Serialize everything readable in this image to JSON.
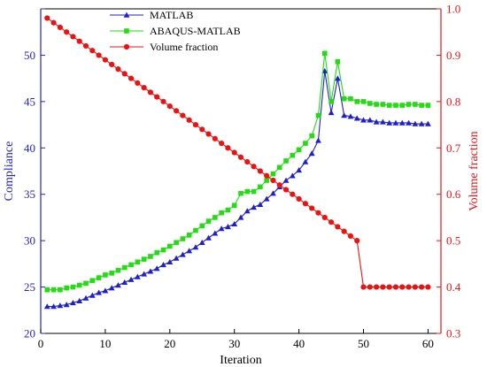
{
  "chart_data": {
    "type": "line",
    "xlabel": "Iteration",
    "ylabel": "Compliance",
    "y2label": "Volume fraction",
    "xlim": [
      0,
      62
    ],
    "xticks": [
      0,
      10,
      20,
      30,
      40,
      50,
      60
    ],
    "ylim": [
      20,
      55
    ],
    "yticks": [
      20,
      25,
      30,
      35,
      40,
      45,
      50,
      55
    ],
    "y2lim": [
      0.3,
      1.0
    ],
    "y2ticks": [
      0.3,
      0.4,
      0.5,
      0.6,
      0.7,
      0.8,
      0.9,
      1.0
    ],
    "legend_position": "top-left",
    "grid": false,
    "colors": {
      "left_axis": "#2222cc",
      "right_axis": "#ee1111",
      "frame": "#000000"
    },
    "series": [
      {
        "name": "MATLAB",
        "axis": "left",
        "color": "#1f1fcf",
        "marker": "triangle",
        "x": [
          1,
          2,
          3,
          4,
          5,
          6,
          7,
          8,
          9,
          10,
          11,
          12,
          13,
          14,
          15,
          16,
          17,
          18,
          19,
          20,
          21,
          22,
          23,
          24,
          25,
          26,
          27,
          28,
          29,
          30,
          31,
          32,
          33,
          34,
          35,
          36,
          37,
          38,
          39,
          40,
          41,
          42,
          43,
          44,
          45,
          46,
          47,
          48,
          49,
          50,
          51,
          52,
          53,
          54,
          55,
          56,
          57,
          58,
          59,
          60
        ],
        "y": [
          22.9,
          22.9,
          23.0,
          23.1,
          23.3,
          23.5,
          23.8,
          24.1,
          24.4,
          24.6,
          24.9,
          25.2,
          25.5,
          25.8,
          26.1,
          26.4,
          26.7,
          27.0,
          27.4,
          27.7,
          28.1,
          28.5,
          28.9,
          29.3,
          29.8,
          30.3,
          30.8,
          31.3,
          31.5,
          31.8,
          32.5,
          33.2,
          33.6,
          33.9,
          34.5,
          35.1,
          35.8,
          36.5,
          37.0,
          37.6,
          38.5,
          39.4,
          40.8,
          48.3,
          43.8,
          47.5,
          43.5,
          43.4,
          43.2,
          43.0,
          43.0,
          42.8,
          42.8,
          42.7,
          42.7,
          42.7,
          42.7,
          42.6,
          42.6,
          42.6
        ]
      },
      {
        "name": "ABAQUS-MATLAB",
        "axis": "left",
        "color": "#22dd11",
        "marker": "square",
        "x": [
          1,
          2,
          3,
          4,
          5,
          6,
          7,
          8,
          9,
          10,
          11,
          12,
          13,
          14,
          15,
          16,
          17,
          18,
          19,
          20,
          21,
          22,
          23,
          24,
          25,
          26,
          27,
          28,
          29,
          30,
          31,
          32,
          33,
          34,
          35,
          36,
          37,
          38,
          39,
          40,
          41,
          42,
          43,
          44,
          45,
          46,
          47,
          48,
          49,
          50,
          51,
          52,
          53,
          54,
          55,
          56,
          57,
          58,
          59,
          60
        ],
        "y": [
          24.7,
          24.7,
          24.7,
          24.9,
          25.0,
          25.2,
          25.4,
          25.7,
          26.0,
          26.3,
          26.5,
          26.8,
          27.1,
          27.4,
          27.7,
          28.0,
          28.3,
          28.7,
          29.0,
          29.4,
          29.8,
          30.2,
          30.6,
          31.1,
          31.6,
          32.1,
          32.5,
          33.0,
          33.3,
          33.8,
          35.1,
          35.3,
          35.3,
          35.8,
          36.5,
          37.2,
          37.9,
          38.6,
          39.2,
          39.8,
          40.5,
          41.3,
          43.5,
          50.2,
          45.0,
          49.3,
          45.3,
          45.3,
          45.0,
          45.0,
          44.8,
          44.7,
          44.7,
          44.6,
          44.6,
          44.6,
          44.7,
          44.7,
          44.6,
          44.6
        ]
      },
      {
        "name": "Volume fraction",
        "axis": "right",
        "color": "#ee1111",
        "marker": "circle",
        "x": [
          1,
          2,
          3,
          4,
          5,
          6,
          7,
          8,
          9,
          10,
          11,
          12,
          13,
          14,
          15,
          16,
          17,
          18,
          19,
          20,
          21,
          22,
          23,
          24,
          25,
          26,
          27,
          28,
          29,
          30,
          31,
          32,
          33,
          34,
          35,
          36,
          37,
          38,
          39,
          40,
          41,
          42,
          43,
          44,
          45,
          46,
          47,
          48,
          49,
          50,
          51,
          52,
          53,
          54,
          55,
          56,
          57,
          58,
          59,
          60
        ],
        "y": [
          0.98,
          0.97,
          0.96,
          0.95,
          0.94,
          0.93,
          0.92,
          0.91,
          0.9,
          0.89,
          0.88,
          0.87,
          0.86,
          0.85,
          0.84,
          0.83,
          0.82,
          0.81,
          0.8,
          0.79,
          0.78,
          0.77,
          0.76,
          0.75,
          0.74,
          0.73,
          0.72,
          0.71,
          0.7,
          0.69,
          0.68,
          0.67,
          0.66,
          0.65,
          0.64,
          0.63,
          0.62,
          0.61,
          0.6,
          0.59,
          0.58,
          0.57,
          0.56,
          0.55,
          0.54,
          0.53,
          0.52,
          0.51,
          0.5,
          0.4,
          0.4,
          0.4,
          0.4,
          0.4,
          0.4,
          0.4,
          0.4,
          0.4,
          0.4,
          0.4
        ]
      }
    ]
  }
}
